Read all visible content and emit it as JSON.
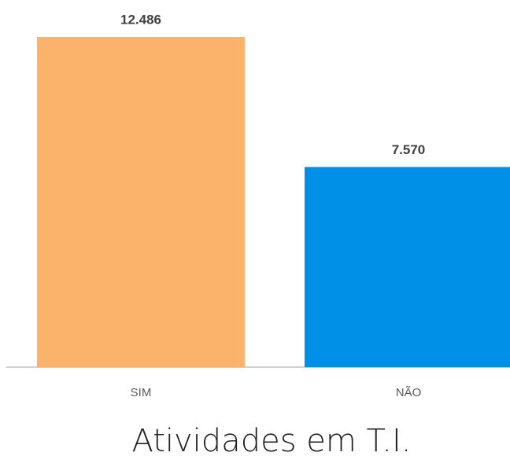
{
  "chart_data": {
    "type": "bar",
    "title": "Atividades em T.I.",
    "categories": [
      "SIM",
      "NÃO"
    ],
    "values": [
      12486,
      7570
    ],
    "value_labels": [
      "12.486",
      "7.570"
    ],
    "colors": [
      "#fbb36b",
      "#0090e8"
    ]
  }
}
